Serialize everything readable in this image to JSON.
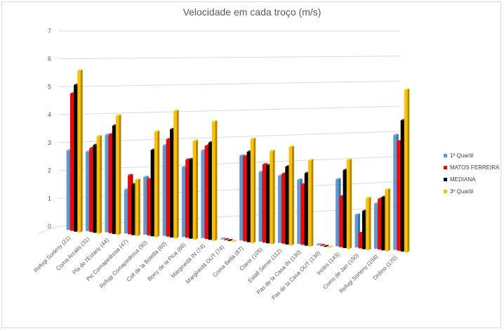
{
  "chart_data": {
    "type": "bar",
    "title": "Velocidade em cada troço (m/s)",
    "xlabel": "",
    "ylabel": "",
    "ylim": [
      0,
      7
    ],
    "yticks": [
      0,
      1,
      2,
      3,
      4,
      5,
      6,
      7
    ],
    "categories": [
      "Refugi Sorteny (21)",
      "Coma Arcalis (31)",
      "Pla de l'Estany (44)",
      "Pic Comapedrosa (47)",
      "Refugi Comapedrosa (50)",
      "Coll de la Botella (60)",
      "Borry de la Pica (66)",
      "Marginedà IN (74)",
      "Marginedà OUT (74)",
      "Coma Bella (87)",
      "Claror (105)",
      "Estall Serrer (112)",
      "Pas de la Casa IN (130)",
      "Pas de la Casa OUT (130)",
      "Incles (143)",
      "Coms de Jan (150)",
      "Refugi Sorteny (158)",
      "Ordino (170)"
    ],
    "series": [
      {
        "name": "1º Quartil",
        "color": "#5b9bd5",
        "values": [
          2.9,
          2.9,
          3.55,
          1.6,
          2.1,
          3.3,
          2.55,
          3.2,
          0.02,
          3.1,
          2.55,
          2.45,
          2.35,
          0.02,
          2.45,
          1.2,
          1.65,
          4.2
        ]
      },
      {
        "name": "MATOS FERREIRA",
        "color": "#ff0000",
        "values": [
          5.0,
          3.05,
          3.6,
          2.15,
          2.05,
          3.55,
          2.85,
          3.4,
          0.02,
          3.1,
          2.85,
          2.55,
          2.2,
          0.02,
          1.85,
          0.55,
          1.85,
          4.0
        ]
      },
      {
        "name": "MEDIANA",
        "color": "#000000",
        "values": [
          5.35,
          3.2,
          3.95,
          1.85,
          3.15,
          3.95,
          2.9,
          3.55,
          0.02,
          3.3,
          2.85,
          2.85,
          2.65,
          0.02,
          2.85,
          1.4,
          1.95,
          4.8
        ]
      },
      {
        "name": "3º Quartil",
        "color": "#ffc000",
        "values": [
          5.9,
          3.55,
          4.35,
          2.05,
          3.85,
          4.65,
          3.6,
          4.35,
          0.02,
          3.8,
          3.4,
          3.6,
          3.15,
          0.02,
          3.25,
          1.9,
          2.25,
          5.95
        ]
      }
    ],
    "legend_position": "right"
  }
}
